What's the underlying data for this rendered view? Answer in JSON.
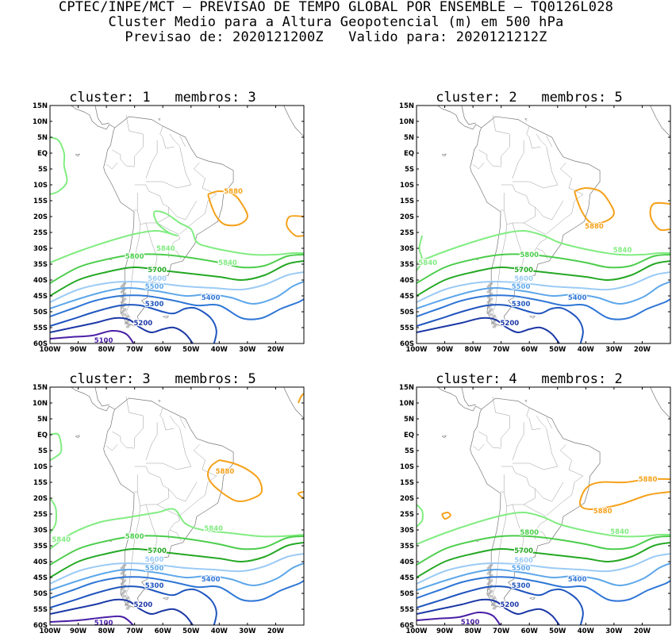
{
  "header": {
    "line1": "CPTEC/INPE/MCT – PREVISAO DE TEMPO GLOBAL POR ENSEMBLE – TQ0126L028",
    "line2": "Cluster Medio para a Altura Geopotencial (m) em 500 hPa",
    "line3": "Previsao de: 2020121200Z   Valido para: 2020121212Z"
  },
  "lat_ticks": [
    "15N",
    "10N",
    "5N",
    "EQ",
    "5S",
    "10S",
    "15S",
    "20S",
    "25S",
    "30S",
    "35S",
    "40S",
    "45S",
    "50S",
    "55S",
    "60S"
  ],
  "lon_ticks": [
    "100W",
    "90W",
    "80W",
    "70W",
    "60W",
    "50W",
    "40W",
    "30W",
    "20W"
  ],
  "contour_colors": {
    "5880": "#f5a11a",
    "5840": "#82ec82",
    "5800": "#4ccd4c",
    "5700": "#24a824",
    "5600": "#9ccbf5",
    "5500": "#5da7ea",
    "5400": "#2f76d6",
    "5300": "#1f55be",
    "5200": "#1c38a6",
    "5100": "#4a1fa6"
  },
  "panels": [
    {
      "title": "cluster: 1   membros: 3",
      "labels": [
        "5880",
        "5840",
        "5840",
        "5800",
        "5700",
        "5600",
        "5500",
        "5400",
        "5300",
        "5200",
        "5100"
      ]
    },
    {
      "title": "cluster: 2   membros: 5",
      "labels": [
        "5880",
        "5840",
        "5840",
        "5800",
        "5700",
        "5600",
        "5500",
        "5400",
        "5300",
        "5200"
      ]
    },
    {
      "title": "cluster: 3   membros: 5",
      "labels": [
        "5880",
        "5840",
        "5840",
        "5800",
        "5700",
        "5600",
        "5500",
        "5400",
        "5300",
        "5200",
        "5100"
      ]
    },
    {
      "title": "cluster: 4   membros: 2",
      "labels": [
        "5880",
        "5880",
        "5840",
        "5800",
        "5700",
        "5600",
        "5500",
        "5400",
        "5300",
        "5200",
        "5100"
      ]
    }
  ]
}
